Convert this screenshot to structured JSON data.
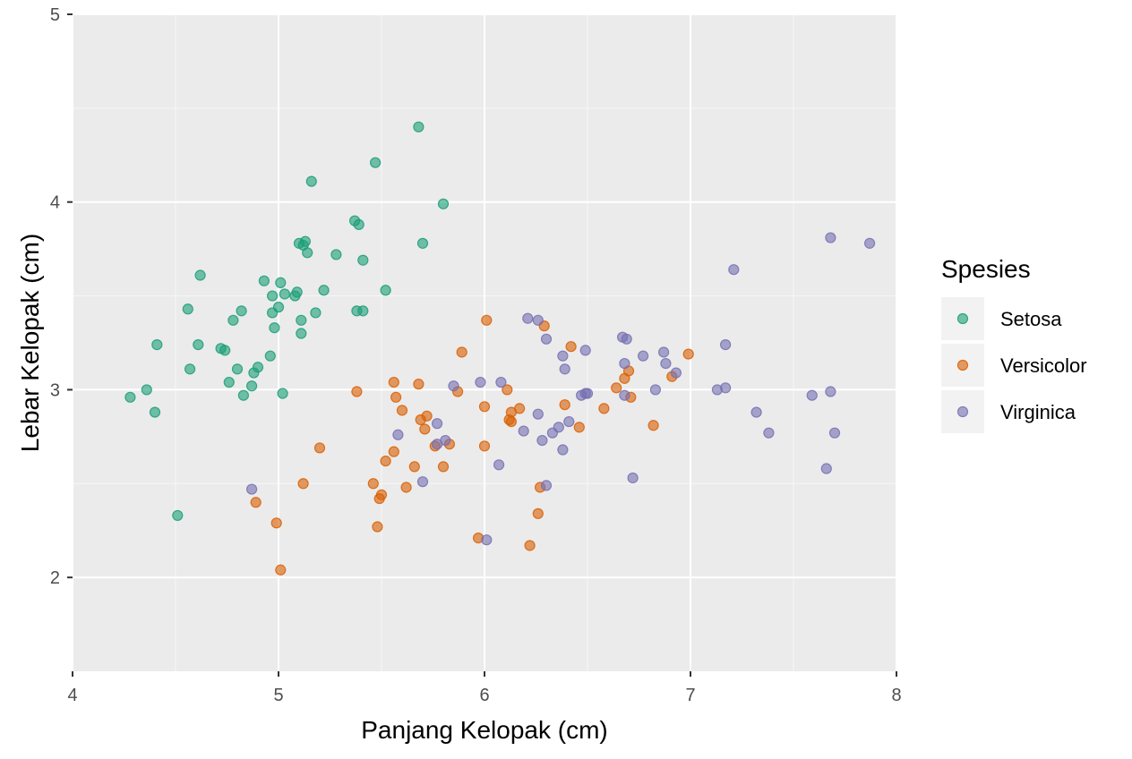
{
  "chart_data": {
    "type": "scatter",
    "xlabel": "Panjang Kelopak (cm)",
    "ylabel": "Lebar Kelopak (cm)",
    "xlim": [
      4,
      8
    ],
    "ylim": [
      1.5,
      5
    ],
    "x_ticks": [
      4,
      5,
      6,
      7,
      8
    ],
    "y_ticks": [
      2,
      3,
      4,
      5
    ],
    "x_tick_labels": [
      "4",
      "5",
      "6",
      "7",
      "8"
    ],
    "y_tick_labels": [
      "2",
      "3",
      "4",
      "5"
    ],
    "grid": true,
    "background": "#ebebeb",
    "legend": {
      "title": "Spesies",
      "position": "right"
    },
    "series": [
      {
        "name": "Setosa",
        "color": "#1b9e77",
        "points": [
          [
            5.68,
            4.4
          ],
          [
            5.47,
            4.21
          ],
          [
            5.16,
            4.11
          ],
          [
            5.8,
            3.99
          ],
          [
            5.37,
            3.9
          ],
          [
            5.39,
            3.88
          ],
          [
            5.13,
            3.79
          ],
          [
            5.1,
            3.78
          ],
          [
            5.12,
            3.77
          ],
          [
            5.7,
            3.78
          ],
          [
            5.14,
            3.73
          ],
          [
            5.28,
            3.72
          ],
          [
            5.41,
            3.69
          ],
          [
            4.62,
            3.61
          ],
          [
            4.93,
            3.58
          ],
          [
            5.01,
            3.57
          ],
          [
            5.03,
            3.51
          ],
          [
            5.09,
            3.52
          ],
          [
            5.08,
            3.5
          ],
          [
            4.97,
            3.5
          ],
          [
            5.22,
            3.53
          ],
          [
            5.52,
            3.53
          ],
          [
            4.56,
            3.43
          ],
          [
            4.82,
            3.42
          ],
          [
            5.0,
            3.44
          ],
          [
            4.97,
            3.41
          ],
          [
            5.18,
            3.41
          ],
          [
            5.38,
            3.42
          ],
          [
            5.41,
            3.42
          ],
          [
            4.78,
            3.37
          ],
          [
            5.11,
            3.37
          ],
          [
            4.98,
            3.33
          ],
          [
            5.11,
            3.3
          ],
          [
            4.41,
            3.24
          ],
          [
            4.61,
            3.24
          ],
          [
            4.72,
            3.22
          ],
          [
            4.74,
            3.21
          ],
          [
            4.96,
            3.18
          ],
          [
            4.9,
            3.12
          ],
          [
            4.57,
            3.11
          ],
          [
            4.8,
            3.11
          ],
          [
            4.88,
            3.09
          ],
          [
            4.76,
            3.04
          ],
          [
            4.87,
            3.02
          ],
          [
            4.36,
            3.0
          ],
          [
            4.83,
            2.97
          ],
          [
            5.02,
            2.98
          ],
          [
            4.28,
            2.96
          ],
          [
            4.4,
            2.88
          ],
          [
            4.51,
            2.33
          ]
        ]
      },
      {
        "name": "Versicolor",
        "color": "#d95f02",
        "points": [
          [
            6.01,
            3.37
          ],
          [
            6.29,
            3.34
          ],
          [
            6.42,
            3.23
          ],
          [
            5.89,
            3.2
          ],
          [
            6.99,
            3.19
          ],
          [
            6.7,
            3.1
          ],
          [
            6.91,
            3.07
          ],
          [
            6.68,
            3.06
          ],
          [
            5.56,
            3.04
          ],
          [
            5.68,
            3.03
          ],
          [
            6.64,
            3.01
          ],
          [
            6.11,
            3.0
          ],
          [
            5.38,
            2.99
          ],
          [
            5.87,
            2.99
          ],
          [
            6.71,
            2.96
          ],
          [
            5.57,
            2.96
          ],
          [
            6.39,
            2.92
          ],
          [
            6.0,
            2.91
          ],
          [
            6.17,
            2.9
          ],
          [
            6.58,
            2.9
          ],
          [
            5.6,
            2.89
          ],
          [
            6.13,
            2.88
          ],
          [
            5.72,
            2.86
          ],
          [
            5.69,
            2.84
          ],
          [
            6.12,
            2.84
          ],
          [
            6.13,
            2.83
          ],
          [
            6.82,
            2.81
          ],
          [
            6.46,
            2.8
          ],
          [
            5.71,
            2.79
          ],
          [
            5.83,
            2.71
          ],
          [
            5.76,
            2.7
          ],
          [
            6.0,
            2.7
          ],
          [
            5.2,
            2.69
          ],
          [
            5.52,
            2.62
          ],
          [
            5.66,
            2.59
          ],
          [
            5.8,
            2.59
          ],
          [
            5.56,
            2.67
          ],
          [
            5.12,
            2.5
          ],
          [
            5.46,
            2.5
          ],
          [
            6.27,
            2.48
          ],
          [
            5.62,
            2.48
          ],
          [
            5.5,
            2.44
          ],
          [
            5.49,
            2.42
          ],
          [
            4.89,
            2.4
          ],
          [
            6.26,
            2.34
          ],
          [
            4.99,
            2.29
          ],
          [
            5.48,
            2.27
          ],
          [
            5.97,
            2.21
          ],
          [
            6.22,
            2.17
          ],
          [
            5.01,
            2.04
          ]
        ]
      },
      {
        "name": "Virginica",
        "color": "#7570b3",
        "points": [
          [
            7.68,
            3.81
          ],
          [
            7.87,
            3.78
          ],
          [
            7.21,
            3.64
          ],
          [
            6.21,
            3.38
          ],
          [
            6.26,
            3.37
          ],
          [
            6.67,
            3.28
          ],
          [
            6.69,
            3.27
          ],
          [
            6.3,
            3.27
          ],
          [
            7.17,
            3.24
          ],
          [
            6.49,
            3.21
          ],
          [
            6.87,
            3.2
          ],
          [
            6.38,
            3.18
          ],
          [
            6.77,
            3.18
          ],
          [
            6.68,
            3.14
          ],
          [
            6.88,
            3.14
          ],
          [
            6.39,
            3.11
          ],
          [
            6.93,
            3.09
          ],
          [
            5.98,
            3.04
          ],
          [
            6.08,
            3.04
          ],
          [
            5.85,
            3.02
          ],
          [
            7.17,
            3.01
          ],
          [
            7.13,
            3.0
          ],
          [
            6.83,
            3.0
          ],
          [
            7.68,
            2.99
          ],
          [
            6.49,
            2.98
          ],
          [
            6.47,
            2.97
          ],
          [
            7.59,
            2.97
          ],
          [
            6.68,
            2.97
          ],
          [
            7.32,
            2.88
          ],
          [
            6.26,
            2.87
          ],
          [
            6.41,
            2.83
          ],
          [
            6.36,
            2.8
          ],
          [
            6.19,
            2.78
          ],
          [
            6.33,
            2.77
          ],
          [
            7.38,
            2.77
          ],
          [
            7.7,
            2.77
          ],
          [
            5.58,
            2.76
          ],
          [
            5.77,
            2.82
          ],
          [
            5.81,
            2.73
          ],
          [
            6.28,
            2.73
          ],
          [
            5.77,
            2.71
          ],
          [
            6.38,
            2.68
          ],
          [
            6.07,
            2.6
          ],
          [
            7.66,
            2.58
          ],
          [
            6.72,
            2.53
          ],
          [
            5.7,
            2.51
          ],
          [
            6.3,
            2.49
          ],
          [
            4.87,
            2.47
          ],
          [
            6.01,
            2.2
          ],
          [
            6.5,
            2.98
          ]
        ]
      }
    ]
  }
}
